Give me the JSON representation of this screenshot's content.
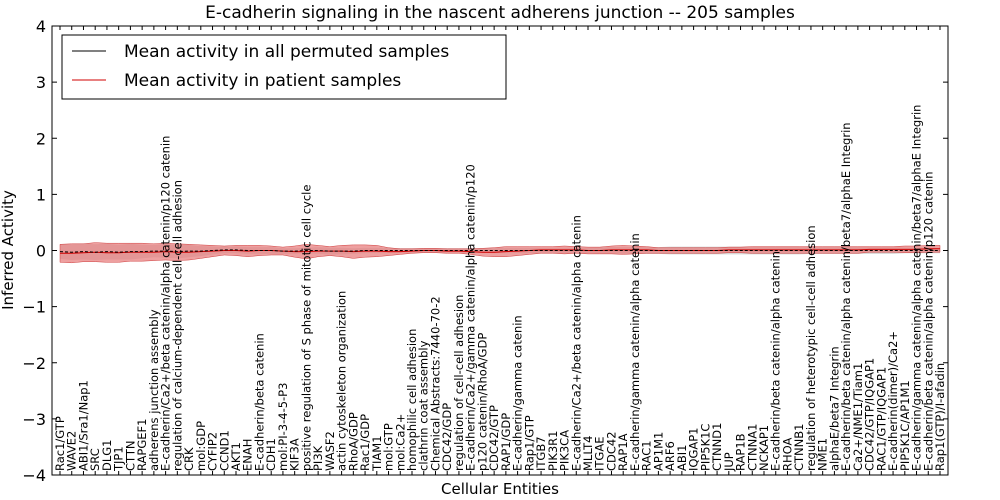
{
  "chart_data": {
    "type": "line",
    "title": "E-cadherin signaling in the nascent adherens junction -- 205 samples",
    "xlabel": "Cellular Entities",
    "ylabel": "Inferred Activity",
    "ylim": [
      -4,
      4
    ],
    "yticks": [
      -4,
      -3,
      -2,
      -1,
      0,
      1,
      2,
      3,
      4
    ],
    "ytick_labels": [
      "−4",
      "−3",
      "−2",
      "−1",
      "0",
      "1",
      "2",
      "3",
      "4"
    ],
    "grid": false,
    "legend_position": "top-left",
    "colors": {
      "permuted": "#000000",
      "patient": "#d00000",
      "patient_band": "#e88080",
      "permuted_band": "#cccccc",
      "axes": "#000000"
    },
    "categories": [
      "Rac1/GTP",
      "WAVE2",
      "ABI1/Sra1/Nap1",
      "SRC",
      "DLG1",
      "TJP1",
      "CTTN",
      "RAPGEF1",
      "adherens junction assembly",
      "E-cadherin/Ca2+/beta catenin/alpha catenin/p120 catenin",
      "regulation of calcium-dependent cell-cell adhesion",
      "CRK",
      "mol:GDP",
      "CYFIP2",
      "CCND1",
      "AKT1",
      "ENAH",
      "E-cadherin/beta catenin",
      "CDH1",
      "mol:PI-3-4-5-P3",
      "KIF3A",
      "positive regulation of S phase of mitotic cell cycle",
      "PI3K",
      "WASF2",
      "actin cytoskeleton organization",
      "RhoA/GDP",
      "Rac1/GDP",
      "TIAM1",
      "mol:GTP",
      "mol:Ca2+",
      "homophilic cell adhesion",
      "clathrin coat assembly",
      "Chemical Abstracts:7440-70-2",
      "CDC42/GDP",
      "regulation of cell-cell adhesion",
      "E-cadherin/Ca2+/gamma catenin/alpha catenin/p120",
      "p120 catenin/RhoA/GDP",
      "CDC42/GTP",
      "RAP1/GDP",
      "E-cadherin/gamma catenin",
      "Rap1/GTP",
      "ITGB7",
      "PIK3R1",
      "PIK3CA",
      "E-cadherin/Ca2+/beta catenin/alpha catenin",
      "MLLT4",
      "ITGAE",
      "CDC42",
      "RAP1A",
      "E-cadherin/gamma catenin/alpha catenin",
      "RAC1",
      "AP1M1",
      "ARF6",
      "ABI1",
      "IQGAP1",
      "PIP5K1C",
      "CTNND1",
      "JUP",
      "RAP1B",
      "CTNNA1",
      "NCKAP1",
      "E-cadherin/beta catenin/alpha catenin",
      "RHOA",
      "CTNNB1",
      "regulation of heterotypic cell-cell adhesion",
      "NME1",
      "alphaE/beta7 Integrin",
      "E-cadherin/beta catenin/alpha catenin/beta7/alphaE Integrin",
      "Ca2+/NME1/Tiam1",
      "CDC42/GTP/IQGAP1",
      "RAC1/GTP/IQGAP1",
      "E-cadherin(dimer)/Ca2+",
      "PIP5K1C/AP1M1",
      "E-cadherin/gamma catenin/alpha catenin/beta7/alphaE Integrin",
      "E-cadherin/beta catenin/alpha catenin/p120 catenin",
      "Rap1(GTP)/I-afadin"
    ],
    "series": [
      {
        "name": "Mean activity in all permuted samples",
        "values": [
          -0.02,
          -0.03,
          -0.02,
          -0.03,
          -0.02,
          -0.03,
          -0.02,
          -0.02,
          -0.01,
          -0.01,
          -0.02,
          -0.01,
          -0.01,
          0.0,
          0.01,
          0.01,
          0.0,
          0.0,
          0.0,
          -0.01,
          -0.01,
          0.0,
          0.0,
          -0.01,
          -0.01,
          -0.01,
          0.0,
          0.0,
          0.0,
          0.0,
          0.0,
          0.0,
          0.0,
          0.0,
          0.0,
          0.0,
          0.0,
          0.0,
          0.0,
          0.0,
          0.0,
          0.0,
          0.0,
          0.0,
          0.0,
          0.0,
          0.0,
          0.0,
          0.0,
          0.0,
          0.0,
          0.0,
          0.0,
          0.0,
          0.0,
          0.0,
          0.0,
          0.0,
          0.0,
          0.0,
          0.0,
          0.0,
          0.0,
          0.0,
          0.0,
          0.0,
          0.0,
          0.0,
          0.0,
          0.0,
          0.0,
          0.0,
          0.0,
          0.0,
          0.0,
          0.0
        ],
        "band_half_width": [
          0.13,
          0.14,
          0.14,
          0.14,
          0.14,
          0.13,
          0.14,
          0.12,
          0.11,
          0.12,
          0.12,
          0.11,
          0.09,
          0.07,
          0.06,
          0.06,
          0.06,
          0.06,
          0.06,
          0.05,
          0.05,
          0.05,
          0.06,
          0.06,
          0.06,
          0.05,
          0.05,
          0.05,
          0.05,
          0.04,
          0.04,
          0.04,
          0.04,
          0.04,
          0.04,
          0.04,
          0.04,
          0.05,
          0.05,
          0.05,
          0.05,
          0.05,
          0.05,
          0.05,
          0.05,
          0.05,
          0.06,
          0.06,
          0.06,
          0.06,
          0.06,
          0.06,
          0.07,
          0.07,
          0.07,
          0.07,
          0.07,
          0.07,
          0.07,
          0.07,
          0.07,
          0.07,
          0.07,
          0.07,
          0.06,
          0.06,
          0.06,
          0.06,
          0.06,
          0.06,
          0.06,
          0.06,
          0.05,
          0.05,
          0.05,
          0.05
        ]
      },
      {
        "name": "Mean activity in patient samples",
        "values": [
          -0.05,
          -0.05,
          -0.04,
          -0.03,
          -0.04,
          -0.04,
          -0.03,
          -0.03,
          -0.03,
          -0.02,
          -0.03,
          -0.03,
          -0.02,
          -0.01,
          0.0,
          0.0,
          -0.01,
          0.0,
          0.0,
          -0.01,
          -0.02,
          -0.02,
          -0.01,
          -0.01,
          -0.01,
          -0.02,
          -0.01,
          -0.01,
          -0.02,
          -0.02,
          -0.01,
          0.0,
          0.0,
          -0.01,
          -0.01,
          -0.02,
          -0.03,
          -0.03,
          -0.02,
          -0.01,
          0.0,
          0.01,
          0.01,
          0.01,
          0.01,
          0.0,
          0.0,
          0.01,
          0.01,
          0.01,
          0.01,
          0.0,
          0.0,
          0.0,
          0.0,
          0.0,
          0.0,
          0.01,
          0.01,
          0.01,
          0.01,
          0.01,
          0.01,
          0.01,
          0.01,
          0.01,
          0.01,
          0.01,
          0.01,
          0.02,
          0.02,
          0.02,
          0.02,
          0.02,
          0.03,
          0.03
        ],
        "band_half_width": [
          0.16,
          0.17,
          0.16,
          0.17,
          0.17,
          0.17,
          0.16,
          0.16,
          0.15,
          0.15,
          0.15,
          0.14,
          0.12,
          0.1,
          0.08,
          0.09,
          0.1,
          0.09,
          0.08,
          0.07,
          0.1,
          0.13,
          0.1,
          0.08,
          0.1,
          0.12,
          0.11,
          0.1,
          0.07,
          0.05,
          0.04,
          0.04,
          0.04,
          0.04,
          0.04,
          0.05,
          0.07,
          0.08,
          0.09,
          0.08,
          0.07,
          0.06,
          0.06,
          0.07,
          0.06,
          0.06,
          0.06,
          0.07,
          0.08,
          0.07,
          0.06,
          0.05,
          0.05,
          0.05,
          0.05,
          0.05,
          0.05,
          0.05,
          0.05,
          0.06,
          0.06,
          0.06,
          0.06,
          0.06,
          0.06,
          0.06,
          0.06,
          0.06,
          0.06,
          0.05,
          0.05,
          0.05,
          0.06,
          0.06,
          0.06,
          0.06
        ]
      }
    ]
  }
}
